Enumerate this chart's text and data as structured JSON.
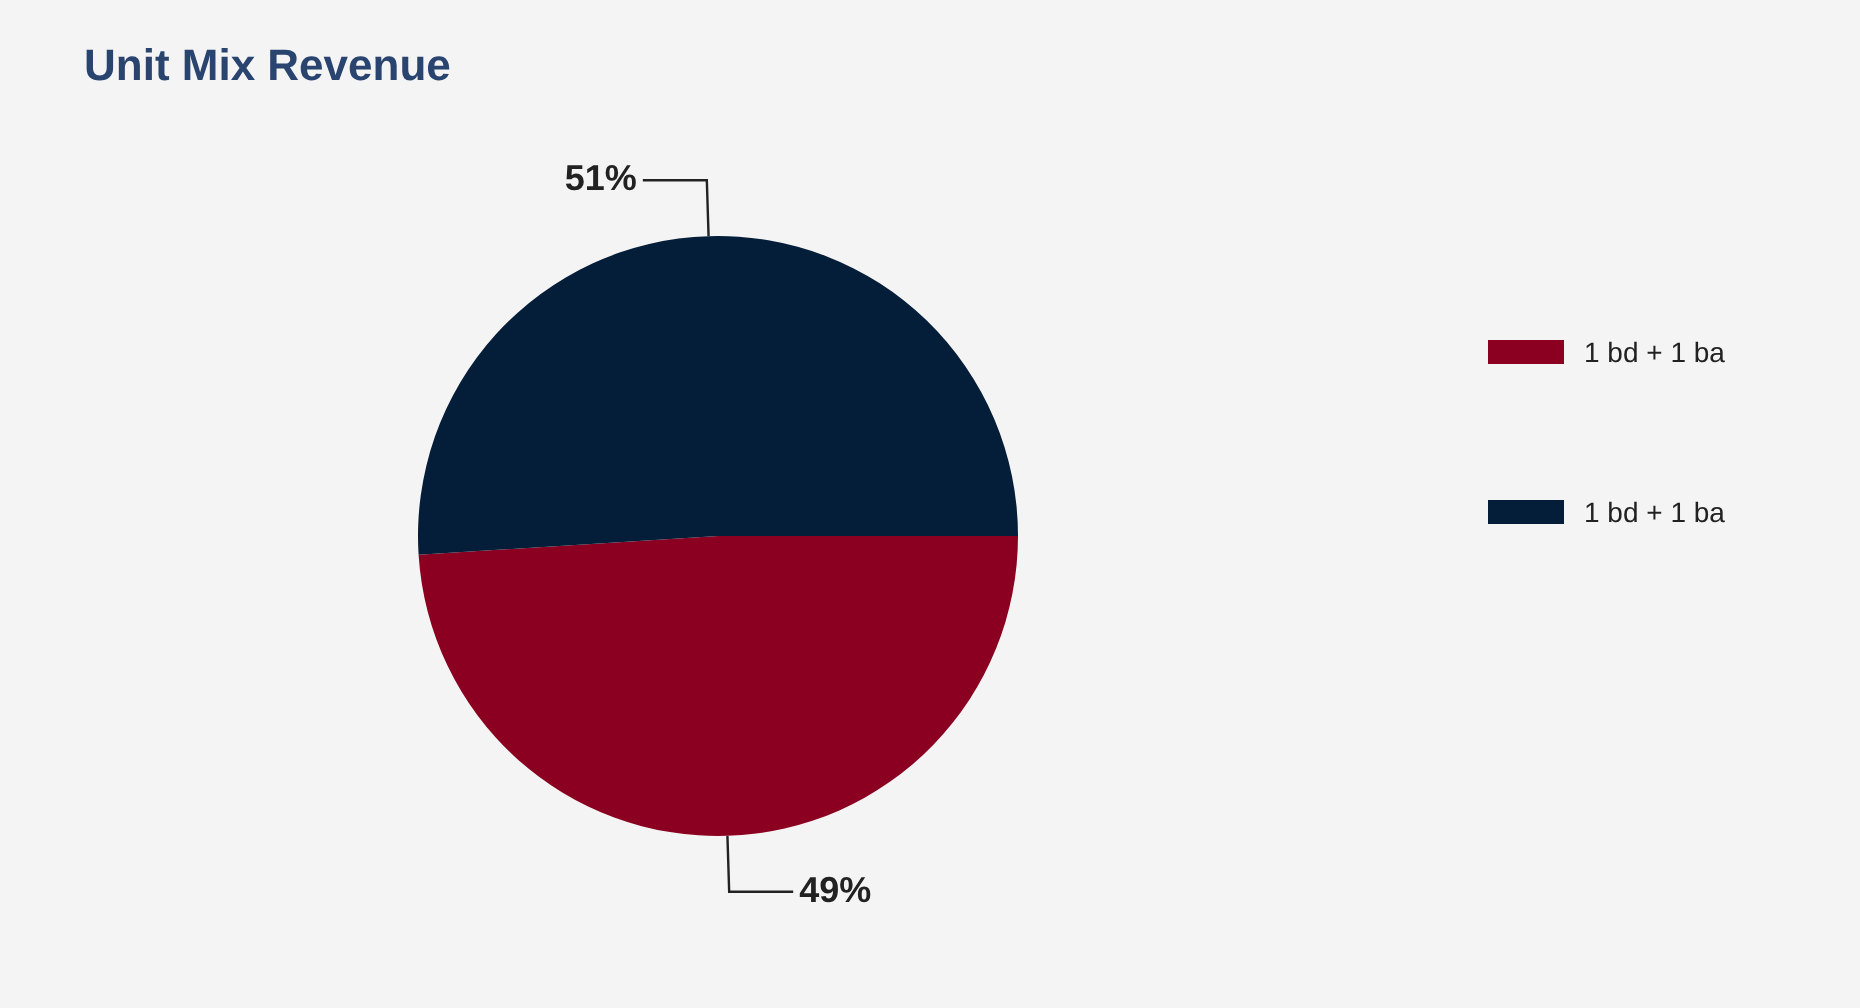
{
  "chart_data": {
    "type": "pie",
    "title": "Unit Mix Revenue",
    "categories": [
      "1 bd + 1 ba",
      "1 bd + 1 ba"
    ],
    "values": [
      49,
      51
    ],
    "colors": [
      "#8b0020",
      "#041d38"
    ],
    "value_labels": [
      "49%",
      "51%"
    ],
    "legend": "right"
  }
}
